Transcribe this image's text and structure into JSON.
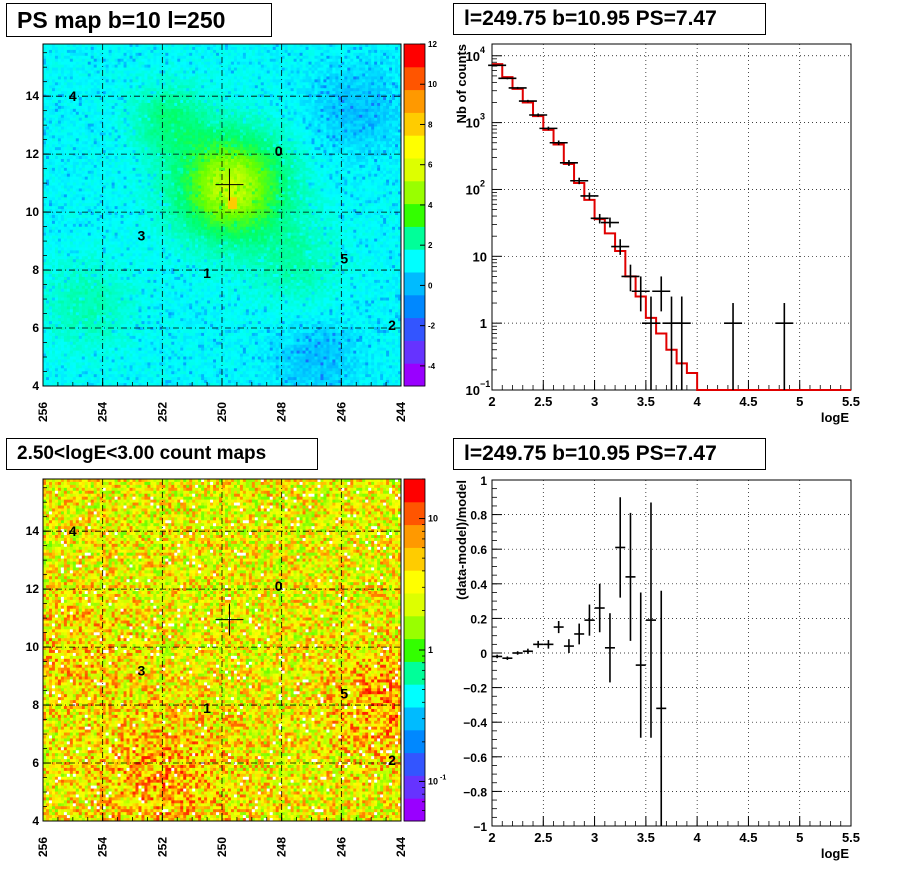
{
  "chart_data": [
    {
      "type": "heatmap",
      "title": "PS map b=10 l=250",
      "xlim": [
        256,
        244
      ],
      "ylim": [
        4,
        15.8
      ],
      "xticks": [
        "256",
        "254",
        "252",
        "250",
        "248",
        "246",
        "244"
      ],
      "yticks": [
        "4",
        "6",
        "8",
        "10",
        "12",
        "14"
      ],
      "colorbar": {
        "scale": "linear",
        "range": [
          -5,
          12
        ],
        "ticks": [
          "-4",
          "-2",
          "0",
          "2",
          "4",
          "6",
          "8",
          "10",
          "12"
        ]
      },
      "marker": {
        "l": 249.75,
        "b": 10.95
      },
      "sources": [
        {
          "label": "0",
          "l": 248.1,
          "b": 12.1
        },
        {
          "label": "1",
          "l": 250.5,
          "b": 7.9
        },
        {
          "label": "2",
          "l": 244.3,
          "b": 6.1
        },
        {
          "label": "3",
          "l": 252.7,
          "b": 9.2
        },
        {
          "label": "4",
          "l": 255.0,
          "b": 14.0
        },
        {
          "label": "5",
          "l": 245.9,
          "b": 8.4
        }
      ],
      "grid": true
    },
    {
      "type": "line",
      "title": "l=249.75 b=10.95 PS=7.47",
      "xlabel": "logE",
      "ylabel": "Nb of counts",
      "xlim": [
        2,
        5.5
      ],
      "ylim": [
        0.1,
        15000
      ],
      "yscale": "log",
      "xticks": [
        "2",
        "2.5",
        "3",
        "3.5",
        "4",
        "4.5",
        "5",
        "5.5"
      ],
      "yticks": [
        {
          "value": 0.1,
          "base": "10",
          "exp": "−1"
        },
        {
          "value": 1,
          "base": "1",
          "exp": ""
        },
        {
          "value": 10,
          "base": "10",
          "exp": ""
        },
        {
          "value": 100,
          "base": "10",
          "exp": "2"
        },
        {
          "value": 1000,
          "base": "10",
          "exp": "3"
        },
        {
          "value": 10000,
          "base": "10",
          "exp": "4"
        }
      ],
      "data_points": [
        {
          "x": 2.05,
          "y": 7200,
          "lo": 7000,
          "hi": 7400
        },
        {
          "x": 2.15,
          "y": 4600,
          "lo": 4450,
          "hi": 4750
        },
        {
          "x": 2.25,
          "y": 3300,
          "lo": 3180,
          "hi": 3420
        },
        {
          "x": 2.35,
          "y": 2100,
          "lo": 2010,
          "hi": 2190
        },
        {
          "x": 2.45,
          "y": 1300,
          "lo": 1230,
          "hi": 1370
        },
        {
          "x": 2.55,
          "y": 820,
          "lo": 770,
          "hi": 870
        },
        {
          "x": 2.65,
          "y": 500,
          "lo": 460,
          "hi": 540
        },
        {
          "x": 2.75,
          "y": 250,
          "lo": 225,
          "hi": 275
        },
        {
          "x": 2.85,
          "y": 135,
          "lo": 120,
          "hi": 150
        },
        {
          "x": 2.95,
          "y": 80,
          "lo": 70,
          "hi": 90
        },
        {
          "x": 3.05,
          "y": 37,
          "lo": 31,
          "hi": 43
        },
        {
          "x": 3.15,
          "y": 32,
          "lo": 27,
          "hi": 38
        },
        {
          "x": 3.25,
          "y": 14,
          "lo": 10.5,
          "hi": 18
        },
        {
          "x": 3.35,
          "y": 5,
          "lo": 3,
          "hi": 7.5
        },
        {
          "x": 3.45,
          "y": 3,
          "lo": 1.5,
          "hi": 5
        },
        {
          "x": 3.55,
          "y": 1,
          "lo": 0.1,
          "hi": 2.5
        },
        {
          "x": 3.65,
          "y": 3,
          "lo": 1.5,
          "hi": 5
        },
        {
          "x": 3.75,
          "y": 1,
          "lo": 0.1,
          "hi": 2.5
        },
        {
          "x": 3.85,
          "y": 1,
          "lo": 0.1,
          "hi": 2.5
        },
        {
          "x": 4.35,
          "y": 1,
          "lo": 0.1,
          "hi": 2
        },
        {
          "x": 4.85,
          "y": 1,
          "lo": 0.1,
          "hi": 2
        }
      ],
      "model": [
        {
          "x0": 2.0,
          "x1": 2.1,
          "y": 7500
        },
        {
          "x0": 2.1,
          "x1": 2.2,
          "y": 4800
        },
        {
          "x0": 2.2,
          "x1": 2.3,
          "y": 3200
        },
        {
          "x0": 2.3,
          "x1": 2.4,
          "y": 2000
        },
        {
          "x0": 2.4,
          "x1": 2.5,
          "y": 1250
        },
        {
          "x0": 2.5,
          "x1": 2.6,
          "y": 780
        },
        {
          "x0": 2.6,
          "x1": 2.7,
          "y": 470
        },
        {
          "x0": 2.7,
          "x1": 2.8,
          "y": 240
        },
        {
          "x0": 2.8,
          "x1": 2.9,
          "y": 125
        },
        {
          "x0": 2.9,
          "x1": 3.0,
          "y": 70
        },
        {
          "x0": 3.0,
          "x1": 3.1,
          "y": 36
        },
        {
          "x0": 3.1,
          "x1": 3.2,
          "y": 22
        },
        {
          "x0": 3.2,
          "x1": 3.3,
          "y": 12
        },
        {
          "x0": 3.3,
          "x1": 3.4,
          "y": 5
        },
        {
          "x0": 3.4,
          "x1": 3.5,
          "y": 2.5
        },
        {
          "x0": 3.5,
          "x1": 3.6,
          "y": 1.2
        },
        {
          "x0": 3.6,
          "x1": 3.7,
          "y": 0.7
        },
        {
          "x0": 3.7,
          "x1": 3.8,
          "y": 0.4
        },
        {
          "x0": 3.8,
          "x1": 3.9,
          "y": 0.25
        },
        {
          "x0": 3.9,
          "x1": 4.0,
          "y": 0.18
        },
        {
          "x0": 4.0,
          "x1": 5.5,
          "y": 0.1
        }
      ],
      "grid": true
    },
    {
      "type": "heatmap",
      "title": "2.50<logE<3.00 count maps",
      "xlim": [
        256,
        244
      ],
      "ylim": [
        4,
        15.8
      ],
      "xticks": [
        "256",
        "254",
        "252",
        "250",
        "248",
        "246",
        "244"
      ],
      "yticks": [
        "4",
        "6",
        "8",
        "10",
        "12",
        "14"
      ],
      "colorbar": {
        "scale": "log",
        "range": [
          0.05,
          20
        ],
        "ticks": [
          {
            "value": 10,
            "label": "10"
          },
          {
            "value": 1,
            "label": "1"
          },
          {
            "value": 0.1,
            "label": "10",
            "exp": "-1"
          }
        ]
      },
      "marker": {
        "l": 249.75,
        "b": 10.95
      },
      "sources": [
        {
          "label": "0",
          "l": 248.1,
          "b": 12.1
        },
        {
          "label": "1",
          "l": 250.5,
          "b": 7.9
        },
        {
          "label": "2",
          "l": 244.3,
          "b": 6.1
        },
        {
          "label": "3",
          "l": 252.7,
          "b": 9.2
        },
        {
          "label": "4",
          "l": 255.0,
          "b": 14.0
        },
        {
          "label": "5",
          "l": 245.9,
          "b": 8.4
        }
      ],
      "grid": true
    },
    {
      "type": "scatter",
      "title": "l=249.75 b=10.95 PS=7.47",
      "xlabel": "logE",
      "ylabel": "(data-model)/model",
      "xlim": [
        2,
        5.5
      ],
      "ylim": [
        -1,
        1
      ],
      "xticks": [
        "2",
        "2.5",
        "3",
        "3.5",
        "4",
        "4.5",
        "5",
        "5.5"
      ],
      "yticks": [
        "−1",
        "−0.8",
        "−0.6",
        "−0.4",
        "−0.2",
        "0",
        "0.2",
        "0.4",
        "0.6",
        "0.8",
        "1"
      ],
      "points": [
        {
          "x": 2.05,
          "y": -0.02,
          "err": 0.01
        },
        {
          "x": 2.15,
          "y": -0.03,
          "err": 0.01
        },
        {
          "x": 2.25,
          "y": 0.0,
          "err": 0.01
        },
        {
          "x": 2.35,
          "y": 0.01,
          "err": 0.015
        },
        {
          "x": 2.45,
          "y": 0.05,
          "err": 0.02
        },
        {
          "x": 2.55,
          "y": 0.05,
          "err": 0.025
        },
        {
          "x": 2.65,
          "y": 0.15,
          "err": 0.035
        },
        {
          "x": 2.75,
          "y": 0.04,
          "err": 0.04
        },
        {
          "x": 2.85,
          "y": 0.11,
          "err": 0.06
        },
        {
          "x": 2.95,
          "y": 0.19,
          "err": 0.09
        },
        {
          "x": 3.05,
          "y": 0.26,
          "err": 0.14
        },
        {
          "x": 3.15,
          "y": 0.03,
          "err": 0.2
        },
        {
          "x": 3.25,
          "y": 0.61,
          "err": 0.29
        },
        {
          "x": 3.35,
          "y": 0.44,
          "err": 0.37
        },
        {
          "x": 3.45,
          "y": -0.07,
          "err": 0.42
        },
        {
          "x": 3.55,
          "y": 0.19,
          "err": 0.68
        },
        {
          "x": 3.65,
          "y": -0.32,
          "err": 0.68
        }
      ],
      "grid": true
    }
  ]
}
